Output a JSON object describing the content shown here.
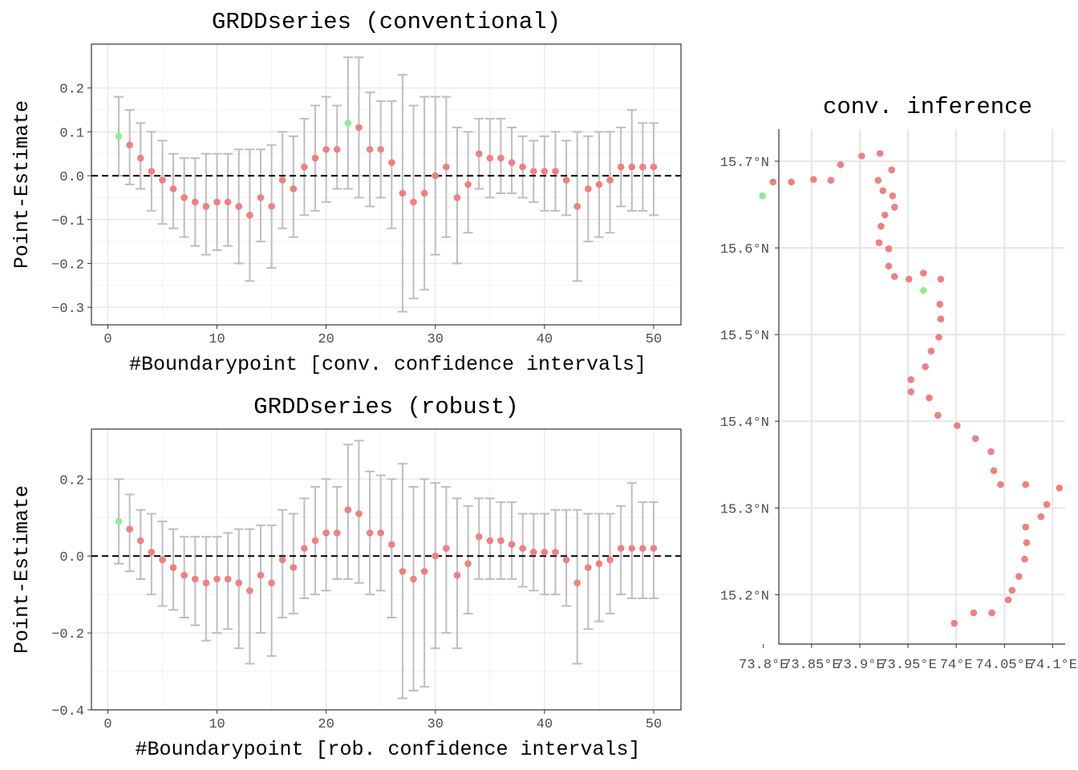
{
  "colors": {
    "point": "#F08080",
    "highlight": "#90EE90",
    "errorbar": "#BEBEBE",
    "grid_major": "#E6E6E6",
    "grid_minor": "#F3F3F3",
    "panel_border": "#333333",
    "zero_line": "#000000"
  },
  "chart_data": [
    {
      "id": "conv",
      "type": "scatter",
      "title": "GRDDseries (conventional)",
      "xlabel": "#Boundarypoint [conv. confidence intervals]",
      "ylabel": "Point-Estimate",
      "xlim": [
        -1.5,
        52.5
      ],
      "ylim": [
        -0.34,
        0.3
      ],
      "xticks": [
        0,
        10,
        20,
        30,
        40,
        50
      ],
      "xtick_labels": [
        "0",
        "10",
        "20",
        "30",
        "40",
        "50"
      ],
      "yticks": [
        -0.3,
        -0.2,
        -0.1,
        0.0,
        0.1,
        0.2
      ],
      "ytick_labels": [
        "−0.3",
        "−0.2",
        "−0.1",
        "0.0",
        "0.1",
        "0.2"
      ],
      "hline": 0,
      "highlight_index": [
        1,
        22
      ],
      "x": [
        1,
        2,
        3,
        4,
        5,
        6,
        7,
        8,
        9,
        10,
        11,
        12,
        13,
        14,
        15,
        16,
        17,
        18,
        19,
        20,
        21,
        22,
        23,
        24,
        25,
        26,
        27,
        28,
        29,
        30,
        31,
        32,
        33,
        34,
        35,
        36,
        37,
        38,
        39,
        40,
        41,
        42,
        43,
        44,
        45,
        46,
        47,
        48,
        49,
        50
      ],
      "estimate": [
        0.09,
        0.07,
        0.04,
        0.01,
        -0.01,
        -0.03,
        -0.05,
        -0.06,
        -0.07,
        -0.06,
        -0.06,
        -0.07,
        -0.09,
        -0.05,
        -0.07,
        -0.01,
        -0.03,
        0.02,
        0.04,
        0.06,
        0.06,
        0.12,
        0.11,
        0.06,
        0.06,
        0.03,
        -0.04,
        -0.06,
        -0.04,
        0.0,
        0.02,
        -0.05,
        -0.02,
        0.05,
        0.04,
        0.04,
        0.03,
        0.02,
        0.01,
        0.01,
        0.01,
        -0.01,
        -0.07,
        -0.03,
        -0.02,
        -0.01,
        0.02,
        0.02,
        0.02,
        0.02
      ],
      "lower": [
        0.0,
        -0.02,
        -0.03,
        -0.08,
        -0.11,
        -0.12,
        -0.14,
        -0.16,
        -0.18,
        -0.17,
        -0.16,
        -0.2,
        -0.24,
        -0.15,
        -0.21,
        -0.12,
        -0.14,
        -0.09,
        -0.08,
        -0.06,
        -0.03,
        -0.03,
        -0.05,
        -0.07,
        -0.05,
        -0.12,
        -0.31,
        -0.28,
        -0.26,
        -0.18,
        -0.14,
        -0.2,
        -0.13,
        -0.03,
        -0.05,
        -0.04,
        -0.04,
        -0.05,
        -0.06,
        -0.08,
        -0.08,
        -0.09,
        -0.24,
        -0.15,
        -0.14,
        -0.13,
        -0.07,
        -0.08,
        -0.08,
        -0.09
      ],
      "upper": [
        0.18,
        0.15,
        0.12,
        0.1,
        0.08,
        0.05,
        0.04,
        0.04,
        0.05,
        0.05,
        0.05,
        0.06,
        0.06,
        0.06,
        0.07,
        0.1,
        0.09,
        0.13,
        0.16,
        0.18,
        0.16,
        0.27,
        0.27,
        0.19,
        0.17,
        0.17,
        0.23,
        0.16,
        0.18,
        0.18,
        0.18,
        0.11,
        0.1,
        0.13,
        0.13,
        0.13,
        0.11,
        0.09,
        0.08,
        0.09,
        0.1,
        0.08,
        0.1,
        0.09,
        0.1,
        0.1,
        0.11,
        0.15,
        0.12,
        0.12
      ]
    },
    {
      "id": "rob",
      "type": "scatter",
      "title": "GRDDseries (robust)",
      "xlabel": "#Boundarypoint [rob. confidence intervals]",
      "ylabel": "Point-Estimate",
      "xlim": [
        -1.5,
        52.5
      ],
      "ylim": [
        -0.4,
        0.33
      ],
      "xticks": [
        0,
        10,
        20,
        30,
        40,
        50
      ],
      "xtick_labels": [
        "0",
        "10",
        "20",
        "30",
        "40",
        "50"
      ],
      "yticks": [
        -0.4,
        -0.2,
        0.0,
        0.2
      ],
      "ytick_labels": [
        "−0.4",
        "−0.2",
        "0.0",
        "0.2"
      ],
      "hline": 0,
      "highlight_index": [
        1
      ],
      "x": [
        1,
        2,
        3,
        4,
        5,
        6,
        7,
        8,
        9,
        10,
        11,
        12,
        13,
        14,
        15,
        16,
        17,
        18,
        19,
        20,
        21,
        22,
        23,
        24,
        25,
        26,
        27,
        28,
        29,
        30,
        31,
        32,
        33,
        34,
        35,
        36,
        37,
        38,
        39,
        40,
        41,
        42,
        43,
        44,
        45,
        46,
        47,
        48,
        49,
        50
      ],
      "estimate": [
        0.09,
        0.07,
        0.04,
        0.01,
        -0.01,
        -0.03,
        -0.05,
        -0.06,
        -0.07,
        -0.06,
        -0.06,
        -0.07,
        -0.09,
        -0.05,
        -0.07,
        -0.01,
        -0.03,
        0.02,
        0.04,
        0.06,
        0.06,
        0.12,
        0.11,
        0.06,
        0.06,
        0.03,
        -0.04,
        -0.06,
        -0.04,
        0.0,
        0.02,
        -0.05,
        -0.02,
        0.05,
        0.04,
        0.04,
        0.03,
        0.02,
        0.01,
        0.01,
        0.01,
        -0.01,
        -0.07,
        -0.03,
        -0.02,
        -0.01,
        0.02,
        0.02,
        0.02,
        0.02
      ],
      "lower": [
        -0.02,
        -0.04,
        -0.06,
        -0.1,
        -0.13,
        -0.14,
        -0.16,
        -0.18,
        -0.22,
        -0.2,
        -0.19,
        -0.24,
        -0.28,
        -0.2,
        -0.26,
        -0.16,
        -0.15,
        -0.11,
        -0.1,
        -0.09,
        -0.06,
        -0.06,
        -0.07,
        -0.1,
        -0.09,
        -0.16,
        -0.37,
        -0.35,
        -0.34,
        -0.24,
        -0.2,
        -0.24,
        -0.15,
        -0.06,
        -0.06,
        -0.06,
        -0.06,
        -0.08,
        -0.09,
        -0.1,
        -0.1,
        -0.13,
        -0.28,
        -0.19,
        -0.17,
        -0.15,
        -0.1,
        -0.11,
        -0.11,
        -0.11
      ],
      "upper": [
        0.2,
        0.16,
        0.12,
        0.11,
        0.09,
        0.07,
        0.05,
        0.05,
        0.05,
        0.05,
        0.06,
        0.07,
        0.07,
        0.08,
        0.08,
        0.12,
        0.11,
        0.15,
        0.18,
        0.2,
        0.18,
        0.29,
        0.3,
        0.22,
        0.21,
        0.2,
        0.24,
        0.18,
        0.2,
        0.19,
        0.18,
        0.15,
        0.13,
        0.15,
        0.15,
        0.14,
        0.14,
        0.11,
        0.11,
        0.11,
        0.12,
        0.12,
        0.12,
        0.11,
        0.11,
        0.11,
        0.13,
        0.19,
        0.14,
        0.14
      ]
    },
    {
      "id": "map",
      "type": "scatter",
      "title": "conv. inference",
      "xlim": [
        73.816,
        74.113
      ],
      "ylim": [
        15.143,
        15.737
      ],
      "xticks": [
        73.8,
        73.85,
        73.9,
        73.95,
        74.0,
        74.05,
        74.1
      ],
      "xtick_labels": [
        "73.8°E",
        "73.85°E",
        "73.9°E",
        "73.95°E",
        "74°E",
        "74.05°E",
        "74.1°E"
      ],
      "yticks": [
        15.2,
        15.3,
        15.4,
        15.5,
        15.6,
        15.7
      ],
      "ytick_labels": [
        "15.2°N",
        "15.3°N",
        "15.4°N",
        "15.5°N",
        "15.6°N",
        "15.7°N"
      ],
      "highlight_index": [
        1,
        22
      ],
      "lon": [
        73.799,
        73.81,
        73.829,
        73.852,
        73.87,
        73.88,
        73.902,
        73.921,
        73.919,
        73.933,
        73.934,
        73.936,
        73.924,
        73.926,
        73.922,
        73.93,
        73.93,
        73.936,
        73.92,
        73.951,
        73.966,
        73.966,
        73.984,
        73.983,
        73.984,
        73.982,
        73.974,
        73.968,
        73.953,
        73.953,
        73.972,
        73.981,
        74.001,
        74.02,
        74.036,
        74.039,
        74.046,
        74.072,
        74.094,
        74.107,
        74.088,
        74.072,
        74.073,
        74.071,
        74.065,
        74.058,
        74.054,
        74.037,
        74.018,
        73.998
      ],
      "lat": [
        15.66,
        15.676,
        15.676,
        15.679,
        15.678,
        15.696,
        15.706,
        15.709,
        15.678,
        15.69,
        15.66,
        15.647,
        15.666,
        15.638,
        15.625,
        15.599,
        15.579,
        15.567,
        15.606,
        15.564,
        15.571,
        15.551,
        15.564,
        15.535,
        15.518,
        15.497,
        15.481,
        15.463,
        15.448,
        15.434,
        15.427,
        15.407,
        15.395,
        15.38,
        15.365,
        15.343,
        15.327,
        15.327,
        15.304,
        15.323,
        15.29,
        15.278,
        15.26,
        15.241,
        15.221,
        15.205,
        15.194,
        15.179,
        15.179,
        15.167
      ]
    }
  ]
}
